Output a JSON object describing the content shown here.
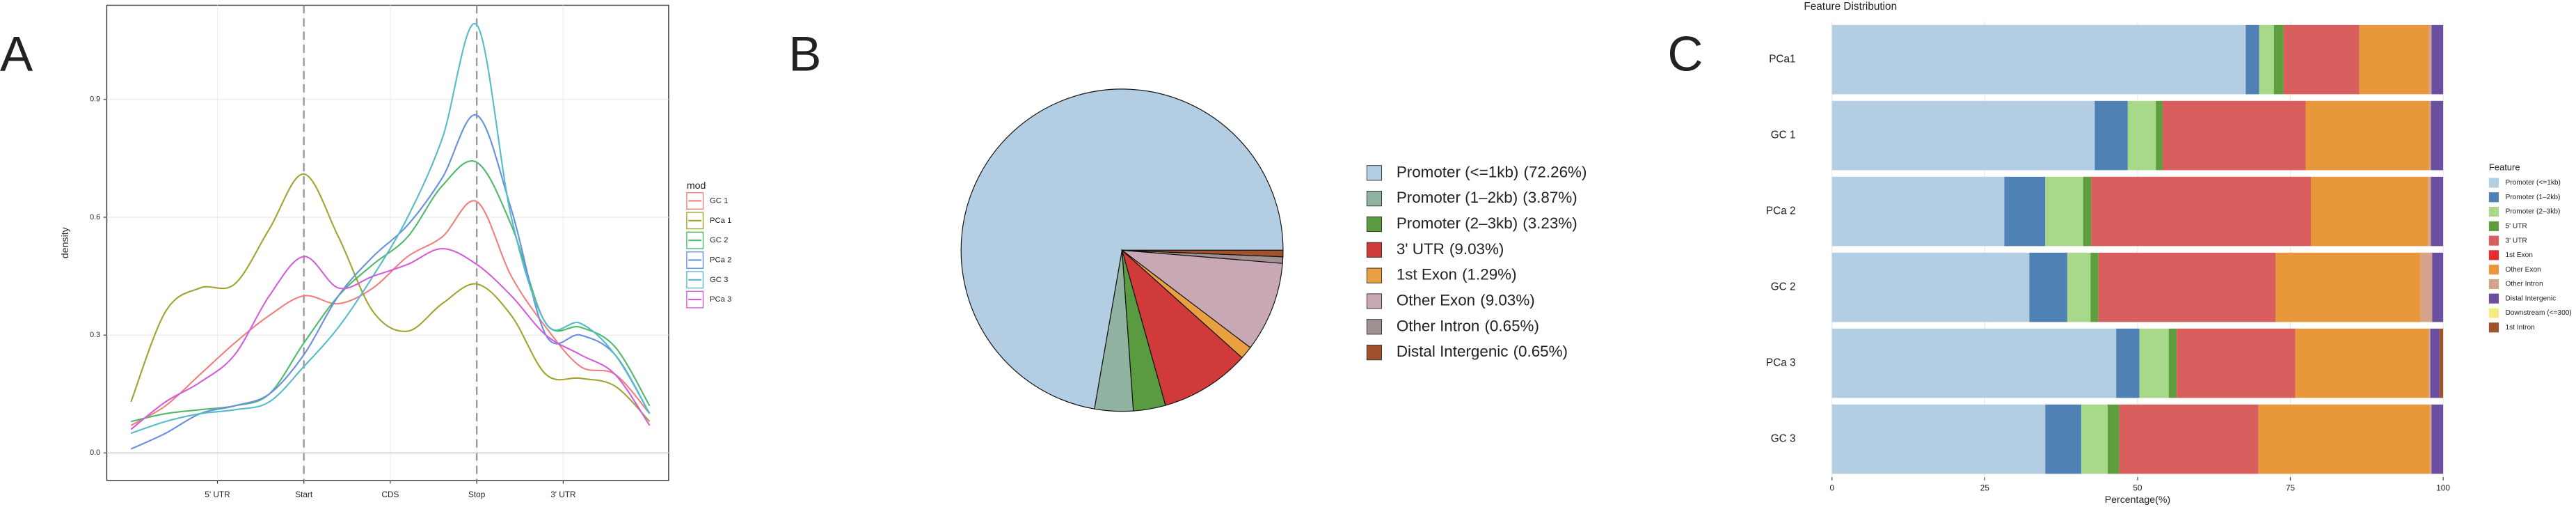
{
  "chart_data": [
    {
      "type": "line",
      "panel": "A",
      "ylabel": "density",
      "legend_title": "mod",
      "x": [
        0,
        2,
        4,
        6,
        8,
        10,
        12,
        14,
        16,
        18,
        20,
        22,
        24,
        26,
        28,
        30
      ],
      "xlim": [
        -1.4,
        31.1
      ],
      "xticks": [
        {
          "value": 5,
          "label": "5' UTR"
        },
        {
          "value": 10,
          "label": "Start"
        },
        {
          "value": 15,
          "label": "CDS"
        },
        {
          "value": 20,
          "label": "Stop"
        },
        {
          "value": 25,
          "label": "3' UTR"
        }
      ],
      "vlines": [
        10,
        20
      ],
      "ylim": [
        -0.07,
        1.14
      ],
      "yticks": [
        {
          "value": 0,
          "label": "0.0"
        },
        {
          "value": 0.3,
          "label": "0.3"
        },
        {
          "value": 0.6,
          "label": "0.6"
        },
        {
          "value": 0.9,
          "label": "0.9"
        }
      ],
      "grid": true,
      "series": [
        {
          "name": "GC 1",
          "color": "#f08080",
          "values": [
            0.07,
            0.12,
            0.2,
            0.28,
            0.35,
            0.4,
            0.38,
            0.42,
            0.5,
            0.55,
            0.64,
            0.45,
            0.32,
            0.22,
            0.2,
            0.1
          ]
        },
        {
          "name": "PCa 1",
          "color": "#a3a332",
          "values": [
            0.13,
            0.36,
            0.42,
            0.43,
            0.57,
            0.71,
            0.55,
            0.36,
            0.31,
            0.38,
            0.43,
            0.35,
            0.2,
            0.19,
            0.17,
            0.08
          ]
        },
        {
          "name": "GC 2",
          "color": "#4dbb6a",
          "values": [
            0.08,
            0.1,
            0.11,
            0.12,
            0.15,
            0.28,
            0.4,
            0.48,
            0.55,
            0.68,
            0.74,
            0.58,
            0.33,
            0.32,
            0.27,
            0.12
          ]
        },
        {
          "name": "PCa 2",
          "color": "#6a8fe0",
          "values": [
            0.01,
            0.05,
            0.1,
            0.12,
            0.15,
            0.25,
            0.4,
            0.5,
            0.58,
            0.7,
            0.86,
            0.62,
            0.3,
            0.3,
            0.25,
            0.1
          ]
        },
        {
          "name": "GC 3",
          "color": "#55bcc9",
          "values": [
            0.05,
            0.08,
            0.1,
            0.11,
            0.13,
            0.22,
            0.32,
            0.45,
            0.6,
            0.8,
            1.09,
            0.6,
            0.33,
            0.33,
            0.25,
            0.1
          ]
        },
        {
          "name": "PCa 3",
          "color": "#d35fd8",
          "values": [
            0.06,
            0.13,
            0.18,
            0.25,
            0.4,
            0.5,
            0.42,
            0.45,
            0.48,
            0.52,
            0.48,
            0.4,
            0.3,
            0.25,
            0.2,
            0.07
          ]
        }
      ]
    },
    {
      "type": "pie",
      "panel": "B",
      "categories": [
        "Promoter (<=1kb)",
        "Promoter (1–2kb)",
        "Promoter (2–3kb)",
        "3' UTR",
        "1st Exon",
        "Other Exon",
        "Other Intron",
        "Distal Intergenic"
      ],
      "values": [
        72.26,
        3.87,
        3.23,
        9.03,
        1.29,
        9.03,
        0.65,
        0.65
      ],
      "value_labels": [
        "(72.26%)",
        "(3.87%)",
        "(3.23%)",
        "(9.03%)",
        "(1.29%)",
        "(9.03%)",
        "(0.65%)",
        "(0.65%)"
      ],
      "colors": [
        "#b3cde3",
        "#8fb3a0",
        "#5a9a40",
        "#d03a3a",
        "#e8a040",
        "#c8a8b4",
        "#a09090",
        "#a0522d"
      ]
    },
    {
      "type": "barh-stacked",
      "panel": "C",
      "title": "Feature Distribution",
      "xlabel": "Percentage(%)",
      "legend_title": "Feature",
      "categories": [
        "PCa1",
        "GC 1",
        "PCa 2",
        "GC 2",
        "PCa 3",
        "GC 3"
      ],
      "xlim": [
        -4.6,
        104.8
      ],
      "xticks": [
        0,
        25,
        50,
        75,
        100
      ],
      "grid": true,
      "series": [
        {
          "name": "Promoter (<=1kb)",
          "color": "#b3cde3",
          "values": [
            67.7,
            43,
            28.2,
            32.3,
            46.5,
            34.9
          ]
        },
        {
          "name": "Promoter (1–2kb)",
          "color": "#4f81b5",
          "values": [
            2.2,
            5.4,
            6.7,
            6.2,
            3.8,
            5.9
          ]
        },
        {
          "name": "Promoter (2–3kb)",
          "color": "#a8d88a",
          "values": [
            2.4,
            4.6,
            6.2,
            3.8,
            4.8,
            4.3
          ]
        },
        {
          "name": "5' UTR",
          "color": "#5e9e3e",
          "values": [
            1.6,
            1.1,
            1.3,
            1.3,
            1.3,
            1.9
          ]
        },
        {
          "name": "3' UTR",
          "color": "#d95f5f",
          "values": [
            12.4,
            23.4,
            36,
            29,
            19.4,
            22.8
          ]
        },
        {
          "name": "1st Exon",
          "color": "#e3302f",
          "values": [
            0,
            0,
            0,
            0,
            0,
            0
          ]
        },
        {
          "name": "Other Exon",
          "color": "#e8973b",
          "values": [
            11.3,
            20.2,
            19.1,
            23.7,
            21.8,
            28
          ]
        },
        {
          "name": "Other Intron",
          "color": "#d4a38a",
          "values": [
            0.5,
            0.3,
            0.5,
            1.9,
            0.3,
            0.3
          ]
        },
        {
          "name": "Distal Intergenic",
          "color": "#6a4fa0",
          "values": [
            1.9,
            2.0,
            2.0,
            1.8,
            1.5,
            1.9
          ]
        },
        {
          "name": "Downstream (<=300)",
          "color": "#f5ec80",
          "values": [
            0,
            0,
            0,
            0,
            0,
            0
          ]
        },
        {
          "name": "1st Intron",
          "color": "#a0522d",
          "values": [
            0,
            0,
            0,
            0,
            0.6,
            0
          ]
        }
      ]
    }
  ]
}
